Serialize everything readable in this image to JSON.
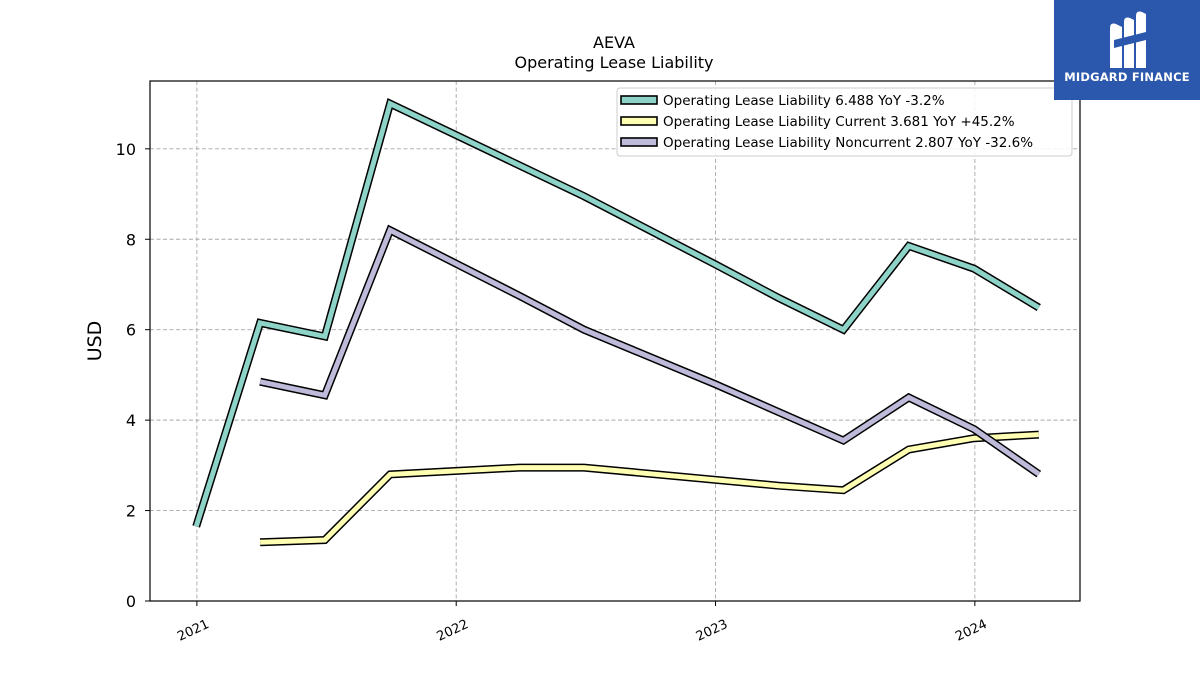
{
  "chart_data": {
    "type": "line",
    "title": "AEVA",
    "subtitle": "Operating Lease Liability",
    "ylabel": "USD",
    "xlabel": "",
    "ylim": [
      0,
      11.5
    ],
    "yticks": [
      0,
      2,
      4,
      6,
      8,
      10
    ],
    "xlim": [
      "2020-10-27",
      "2024-05-28"
    ],
    "xticks": [
      "2021",
      "2022",
      "2023",
      "2024"
    ],
    "grid": true,
    "legend_position": "top-right",
    "series": [
      {
        "name": "Operating Lease Liability  6.488 YoY -3.2%",
        "color": "#8dd3c7",
        "points": [
          [
            "2020-12-31",
            1.65
          ],
          [
            "2021-03-31",
            6.15
          ],
          [
            "2021-06-30",
            5.85
          ],
          [
            "2021-09-30",
            11.0
          ],
          [
            "2022-06-30",
            8.95
          ],
          [
            "2022-12-31",
            7.45
          ],
          [
            "2023-03-31",
            6.7
          ],
          [
            "2023-06-30",
            6.0
          ],
          [
            "2023-09-30",
            7.85
          ],
          [
            "2023-12-31",
            7.35
          ],
          [
            "2024-03-31",
            6.488
          ]
        ]
      },
      {
        "name": "Operating Lease Liability Current  3.681 YoY +45.2%",
        "color": "#ffffb3",
        "points": [
          [
            "2021-03-31",
            1.3
          ],
          [
            "2021-06-30",
            1.35
          ],
          [
            "2021-09-30",
            2.8
          ],
          [
            "2022-03-31",
            2.95
          ],
          [
            "2022-06-30",
            2.95
          ],
          [
            "2023-03-31",
            2.55
          ],
          [
            "2023-06-30",
            2.45
          ],
          [
            "2023-09-30",
            3.35
          ],
          [
            "2023-12-31",
            3.6
          ],
          [
            "2024-03-31",
            3.681
          ]
        ]
      },
      {
        "name": "Operating Lease Liability Noncurrent  2.807 YoY -32.6%",
        "color": "#bebada",
        "points": [
          [
            "2021-03-31",
            4.85
          ],
          [
            "2021-06-30",
            4.55
          ],
          [
            "2021-09-30",
            8.2
          ],
          [
            "2022-03-31",
            6.75
          ],
          [
            "2022-06-30",
            6.0
          ],
          [
            "2022-12-31",
            4.8
          ],
          [
            "2023-06-30",
            3.55
          ],
          [
            "2023-09-30",
            4.5
          ],
          [
            "2023-12-31",
            3.8
          ],
          [
            "2024-03-31",
            2.807
          ]
        ]
      }
    ]
  },
  "logo": {
    "text": "MIDGARD FINANCE",
    "bg_color": "#2b58ad"
  }
}
